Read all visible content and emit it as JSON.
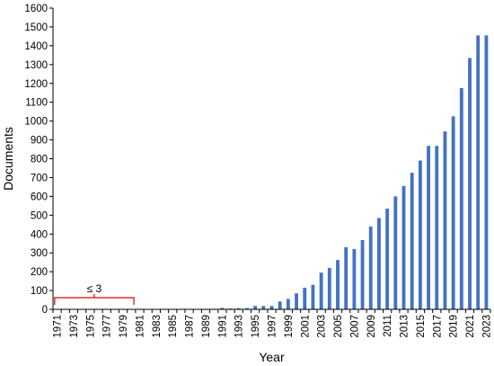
{
  "chart_data": {
    "type": "bar",
    "title": "",
    "xlabel": "Year",
    "ylabel": "Documents",
    "ylim": [
      0,
      1600
    ],
    "yticks": [
      0,
      100,
      200,
      300,
      400,
      500,
      600,
      700,
      800,
      900,
      1000,
      1100,
      1200,
      1300,
      1400,
      1500,
      1600
    ],
    "grid": false,
    "legend": "none",
    "bar_color": "#4472C4",
    "annotation": {
      "text": "≤ 3",
      "from": "1971",
      "to": "1980",
      "color": "#E00000"
    },
    "categories": [
      "1971",
      "1972",
      "1973",
      "1974",
      "1975",
      "1976",
      "1977",
      "1978",
      "1979",
      "1980",
      "1981",
      "1982",
      "1983",
      "1984",
      "1985",
      "1986",
      "1987",
      "1988",
      "1989",
      "1990",
      "1991",
      "1992",
      "1993",
      "1994",
      "1995",
      "1996",
      "1997",
      "1998",
      "1999",
      "2000",
      "2001",
      "2002",
      "2003",
      "2004",
      "2005",
      "2006",
      "2007",
      "2008",
      "2009",
      "2010",
      "2011",
      "2012",
      "2013",
      "2014",
      "2015",
      "2016",
      "2017",
      "2018",
      "2019",
      "2020",
      "2021",
      "2022",
      "2023"
    ],
    "tick_labels": [
      "1971",
      "1973",
      "1975",
      "1977",
      "1979",
      "1981",
      "1983",
      "1985",
      "1987",
      "1989",
      "1991",
      "1993",
      "1995",
      "1997",
      "1999",
      "2001",
      "2003",
      "2005",
      "2007",
      "2009",
      "2011",
      "2013",
      "2015",
      "2017",
      "2019",
      "2021",
      "2023"
    ],
    "values": [
      0,
      0,
      0,
      0,
      0,
      0,
      0,
      0,
      0,
      0,
      3,
      2,
      2,
      2,
      2,
      2,
      2,
      2,
      3,
      3,
      8,
      5,
      6,
      7,
      18,
      18,
      18,
      42,
      55,
      85,
      115,
      130,
      195,
      220,
      262,
      330,
      320,
      368,
      440,
      485,
      535,
      600,
      655,
      725,
      790,
      868,
      868,
      945,
      1025,
      1175,
      1335,
      1455,
      1455
    ]
  }
}
